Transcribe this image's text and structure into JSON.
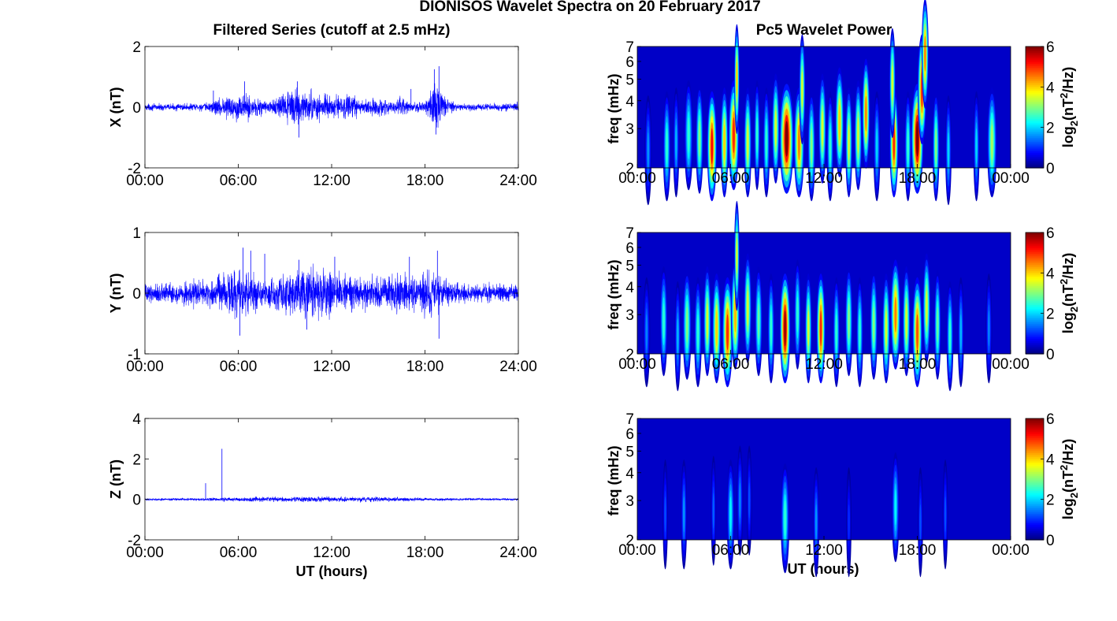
{
  "figure": {
    "suptitle": "DIONISOS Wavelet Spectra on 20 February 2017",
    "left_title": "Filtered Series (cutoff at 2.5 mHz)",
    "right_title": "Pc5 Wavelet Power",
    "xlabel": "UT (hours)",
    "colorbar_label_parts": [
      "log",
      "2",
      "(nT",
      "2",
      "/Hz)"
    ]
  },
  "chart_data": [
    {
      "type": "line",
      "panel": "X",
      "ylabel": "X (nT)",
      "ylim": [
        -2,
        2
      ],
      "yticks": [
        "2",
        "0",
        "-2"
      ],
      "xlim": [
        0,
        24
      ],
      "xticks": [
        "00:00",
        "06:00",
        "12:00",
        "18:00",
        "24:00"
      ],
      "line_color": "#0000ff",
      "envelope": {
        "hours": [
          0,
          2,
          4,
          5,
          6,
          7,
          8,
          9.5,
          10,
          11,
          12,
          13,
          14,
          15,
          16,
          16.5,
          17,
          18,
          18.5,
          19,
          19.5,
          20,
          22,
          24
        ],
        "amplitude": [
          0.15,
          0.15,
          0.2,
          0.5,
          0.6,
          0.55,
          0.25,
          0.8,
          0.7,
          0.65,
          0.5,
          0.6,
          0.35,
          0.4,
          0.2,
          0.5,
          0.2,
          0.25,
          1.1,
          0.9,
          0.4,
          0.15,
          0.15,
          0.2
        ]
      },
      "spikes": [
        {
          "hour": 4.4,
          "value": 0.55
        },
        {
          "hour": 6.4,
          "value": 0.85
        },
        {
          "hour": 9.9,
          "value": -1.0
        },
        {
          "hour": 9.8,
          "value": 0.85
        },
        {
          "hour": 17.1,
          "value": 0.6
        },
        {
          "hour": 18.6,
          "value": 1.25
        },
        {
          "hour": 18.9,
          "value": 1.35
        },
        {
          "hour": 18.7,
          "value": -0.9
        }
      ]
    },
    {
      "type": "line",
      "panel": "Y",
      "ylabel": "Y (nT)",
      "ylim": [
        -1,
        1
      ],
      "yticks": [
        "1",
        "0",
        "-1"
      ],
      "xlim": [
        0,
        24
      ],
      "xticks": [
        "00:00",
        "06:00",
        "12:00",
        "18:00",
        "24:00"
      ],
      "line_color": "#0000ff",
      "envelope": {
        "hours": [
          0,
          2,
          3.5,
          5,
          6,
          6.5,
          7.5,
          9,
          10,
          11.5,
          12.5,
          13.5,
          15,
          16.5,
          17.5,
          18.5,
          19.5,
          21,
          24
        ],
        "amplitude": [
          0.2,
          0.25,
          0.3,
          0.4,
          0.6,
          0.5,
          0.35,
          0.4,
          0.55,
          0.6,
          0.45,
          0.35,
          0.35,
          0.45,
          0.35,
          0.55,
          0.3,
          0.2,
          0.2
        ]
      },
      "spikes": [
        {
          "hour": 6.3,
          "value": 0.75
        },
        {
          "hour": 6.8,
          "value": 0.7
        },
        {
          "hour": 7.7,
          "value": 0.65
        },
        {
          "hour": 9.9,
          "value": 0.55
        },
        {
          "hour": 12.2,
          "value": 0.6
        },
        {
          "hour": 17.0,
          "value": 0.6
        },
        {
          "hour": 18.8,
          "value": 0.7
        },
        {
          "hour": 18.9,
          "value": -0.75
        },
        {
          "hour": 6.1,
          "value": -0.7
        },
        {
          "hour": 10.4,
          "value": -0.6
        }
      ]
    },
    {
      "type": "line",
      "panel": "Z",
      "ylabel": "Z (nT)",
      "ylim": [
        -2,
        4
      ],
      "yticks": [
        "4",
        "2",
        "0",
        "-2"
      ],
      "xlim": [
        0,
        24
      ],
      "xticks": [
        "00:00",
        "06:00",
        "12:00",
        "18:00",
        "24:00"
      ],
      "xlabel": "UT (hours)",
      "line_color": "#0000ff",
      "envelope": {
        "hours": [
          0,
          4,
          6,
          9,
          12,
          16.5,
          18,
          24
        ],
        "amplitude": [
          0.07,
          0.1,
          0.15,
          0.18,
          0.18,
          0.15,
          0.1,
          0.07
        ]
      },
      "spikes": [
        {
          "hour": 3.9,
          "value": 0.8
        },
        {
          "hour": 4.95,
          "value": 2.5
        }
      ]
    },
    {
      "type": "heatmap",
      "panel": "X",
      "ylabel": "freq (mHz)",
      "yscale": "log",
      "ylim": [
        2,
        7
      ],
      "yticks": [
        "7",
        "6",
        "5",
        "4",
        "3",
        "2"
      ],
      "xlim": [
        0,
        24
      ],
      "xticks": [
        "00:00",
        "06:00",
        "12:00",
        "18:00",
        "00:00"
      ],
      "colormap": "jet",
      "clim": [
        0,
        6
      ],
      "cbar_ticks": [
        "6",
        "4",
        "2",
        "0"
      ],
      "cbar_label": "log2(nT²/Hz)",
      "blobs": [
        {
          "t": 0.7,
          "f": 2.4,
          "v": 1.6,
          "w": 0.2
        },
        {
          "t": 1.9,
          "f": 2.5,
          "v": 2.5,
          "w": 0.22
        },
        {
          "t": 2.5,
          "f": 2.6,
          "v": 1.8,
          "w": 0.18
        },
        {
          "t": 3.3,
          "f": 2.8,
          "v": 2.5,
          "w": 0.25
        },
        {
          "t": 4.0,
          "f": 2.7,
          "v": 3.0,
          "w": 0.22
        },
        {
          "t": 4.8,
          "f": 2.5,
          "v": 5.2,
          "w": 0.28
        },
        {
          "t": 5.6,
          "f": 2.6,
          "v": 4.0,
          "w": 0.22
        },
        {
          "t": 6.2,
          "f": 2.8,
          "v": 5.0,
          "w": 0.3
        },
        {
          "t": 6.4,
          "f": 5.0,
          "v": 4.0,
          "w": 0.15
        },
        {
          "t": 7.1,
          "f": 2.6,
          "v": 3.5,
          "w": 0.22
        },
        {
          "t": 7.7,
          "f": 2.8,
          "v": 2.5,
          "w": 0.18
        },
        {
          "t": 8.3,
          "f": 2.6,
          "v": 2.5,
          "w": 0.2
        },
        {
          "t": 8.9,
          "f": 3.0,
          "v": 3.5,
          "w": 0.22
        },
        {
          "t": 9.6,
          "f": 2.7,
          "v": 6.0,
          "w": 0.4
        },
        {
          "t": 10.4,
          "f": 2.6,
          "v": 4.5,
          "w": 0.3
        },
        {
          "t": 10.6,
          "f": 4.5,
          "v": 3.5,
          "w": 0.18
        },
        {
          "t": 11.2,
          "f": 2.5,
          "v": 3.0,
          "w": 0.22
        },
        {
          "t": 11.9,
          "f": 3.0,
          "v": 3.5,
          "w": 0.22
        },
        {
          "t": 12.4,
          "f": 2.5,
          "v": 2.5,
          "w": 0.2
        },
        {
          "t": 13.0,
          "f": 3.2,
          "v": 4.0,
          "w": 0.25
        },
        {
          "t": 13.6,
          "f": 2.6,
          "v": 3.5,
          "w": 0.2
        },
        {
          "t": 14.2,
          "f": 2.8,
          "v": 3.5,
          "w": 0.22
        },
        {
          "t": 14.7,
          "f": 3.5,
          "v": 4.5,
          "w": 0.22
        },
        {
          "t": 15.4,
          "f": 2.5,
          "v": 2.0,
          "w": 0.2
        },
        {
          "t": 16.5,
          "f": 2.6,
          "v": 5.0,
          "w": 0.25
        },
        {
          "t": 16.4,
          "f": 4.8,
          "v": 3.5,
          "w": 0.18
        },
        {
          "t": 17.4,
          "f": 2.5,
          "v": 2.5,
          "w": 0.2
        },
        {
          "t": 18.0,
          "f": 2.7,
          "v": 6.0,
          "w": 0.35
        },
        {
          "t": 18.3,
          "f": 4.5,
          "v": 5.0,
          "w": 0.25
        },
        {
          "t": 18.5,
          "f": 6.5,
          "v": 4.5,
          "w": 0.2
        },
        {
          "t": 19.2,
          "f": 2.5,
          "v": 3.0,
          "w": 0.2
        },
        {
          "t": 20.0,
          "f": 2.4,
          "v": 2.0,
          "w": 0.18
        },
        {
          "t": 21.8,
          "f": 2.5,
          "v": 2.0,
          "w": 0.18
        },
        {
          "t": 22.8,
          "f": 2.6,
          "v": 3.2,
          "w": 0.28
        }
      ]
    },
    {
      "type": "heatmap",
      "panel": "Y",
      "ylabel": "freq (mHz)",
      "yscale": "log",
      "ylim": [
        2,
        7
      ],
      "yticks": [
        "7",
        "6",
        "5",
        "4",
        "3",
        "2"
      ],
      "xlim": [
        0,
        24
      ],
      "xticks": [
        "00:00",
        "06:00",
        "12:00",
        "18:00",
        "00:00"
      ],
      "colormap": "jet",
      "clim": [
        0,
        6
      ],
      "cbar_ticks": [
        "6",
        "4",
        "2",
        "0"
      ],
      "cbar_label": "log2(nT²/Hz)",
      "blobs": [
        {
          "t": 0.6,
          "f": 2.5,
          "v": 1.5,
          "w": 0.2
        },
        {
          "t": 1.7,
          "f": 2.8,
          "v": 2.5,
          "w": 0.22
        },
        {
          "t": 2.6,
          "f": 2.4,
          "v": 1.8,
          "w": 0.18
        },
        {
          "t": 3.2,
          "f": 2.7,
          "v": 3.0,
          "w": 0.25
        },
        {
          "t": 3.9,
          "f": 2.5,
          "v": 2.5,
          "w": 0.22
        },
        {
          "t": 4.5,
          "f": 2.8,
          "v": 3.5,
          "w": 0.22
        },
        {
          "t": 5.1,
          "f": 2.6,
          "v": 4.0,
          "w": 0.25
        },
        {
          "t": 5.8,
          "f": 2.5,
          "v": 5.0,
          "w": 0.3
        },
        {
          "t": 6.3,
          "f": 3.0,
          "v": 4.2,
          "w": 0.25
        },
        {
          "t": 6.4,
          "f": 5.5,
          "v": 3.5,
          "w": 0.15
        },
        {
          "t": 7.1,
          "f": 3.2,
          "v": 3.5,
          "w": 0.22
        },
        {
          "t": 7.8,
          "f": 2.8,
          "v": 2.8,
          "w": 0.22
        },
        {
          "t": 8.6,
          "f": 2.6,
          "v": 2.5,
          "w": 0.2
        },
        {
          "t": 9.5,
          "f": 2.6,
          "v": 5.8,
          "w": 0.3
        },
        {
          "t": 10.3,
          "f": 3.0,
          "v": 2.5,
          "w": 0.2
        },
        {
          "t": 11.0,
          "f": 2.6,
          "v": 3.5,
          "w": 0.2
        },
        {
          "t": 11.8,
          "f": 2.6,
          "v": 5.0,
          "w": 0.25
        },
        {
          "t": 12.8,
          "f": 2.5,
          "v": 2.5,
          "w": 0.2
        },
        {
          "t": 13.6,
          "f": 2.8,
          "v": 3.0,
          "w": 0.22
        },
        {
          "t": 14.3,
          "f": 2.5,
          "v": 2.5,
          "w": 0.2
        },
        {
          "t": 15.2,
          "f": 2.7,
          "v": 3.0,
          "w": 0.22
        },
        {
          "t": 16.0,
          "f": 2.6,
          "v": 3.5,
          "w": 0.22
        },
        {
          "t": 16.6,
          "f": 3.0,
          "v": 4.5,
          "w": 0.28
        },
        {
          "t": 17.3,
          "f": 2.8,
          "v": 3.5,
          "w": 0.22
        },
        {
          "t": 18.0,
          "f": 2.5,
          "v": 4.8,
          "w": 0.28
        },
        {
          "t": 18.6,
          "f": 3.2,
          "v": 3.5,
          "w": 0.22
        },
        {
          "t": 19.3,
          "f": 2.7,
          "v": 2.8,
          "w": 0.2
        },
        {
          "t": 20.1,
          "f": 2.4,
          "v": 2.5,
          "w": 0.2
        },
        {
          "t": 20.8,
          "f": 2.5,
          "v": 1.8,
          "w": 0.18
        },
        {
          "t": 22.6,
          "f": 2.6,
          "v": 1.5,
          "w": 0.18
        }
      ]
    },
    {
      "type": "heatmap",
      "panel": "Z",
      "ylabel": "freq (mHz)",
      "yscale": "log",
      "ylim": [
        2,
        7
      ],
      "yticks": [
        "7",
        "6",
        "5",
        "4",
        "3",
        "2"
      ],
      "xlim": [
        0,
        24
      ],
      "xticks": [
        "00:00",
        "06:00",
        "12:00",
        "18:00",
        "00:00"
      ],
      "xlabel": "UT (hours)",
      "colormap": "jet",
      "clim": [
        0,
        6
      ],
      "cbar_ticks": [
        "6",
        "4",
        "2",
        "0"
      ],
      "cbar_label": "log2(nT²/Hz)",
      "blobs": [
        {
          "t": 1.8,
          "f": 2.6,
          "v": 1.2,
          "w": 0.15
        },
        {
          "t": 3.0,
          "f": 2.6,
          "v": 1.6,
          "w": 0.18
        },
        {
          "t": 4.9,
          "f": 2.7,
          "v": 1.3,
          "w": 0.15
        },
        {
          "t": 6.0,
          "f": 2.6,
          "v": 2.2,
          "w": 0.22
        },
        {
          "t": 6.6,
          "f": 3.0,
          "v": 1.5,
          "w": 0.18
        },
        {
          "t": 7.2,
          "f": 3.0,
          "v": 1.2,
          "w": 0.15
        },
        {
          "t": 9.5,
          "f": 2.5,
          "v": 2.5,
          "w": 0.25
        },
        {
          "t": 11.5,
          "f": 2.4,
          "v": 1.6,
          "w": 0.18
        },
        {
          "t": 13.6,
          "f": 2.4,
          "v": 1.0,
          "w": 0.15
        },
        {
          "t": 16.6,
          "f": 2.8,
          "v": 2.2,
          "w": 0.22
        },
        {
          "t": 18.2,
          "f": 2.4,
          "v": 1.2,
          "w": 0.15
        },
        {
          "t": 19.8,
          "f": 2.6,
          "v": 1.2,
          "w": 0.15
        }
      ]
    }
  ]
}
